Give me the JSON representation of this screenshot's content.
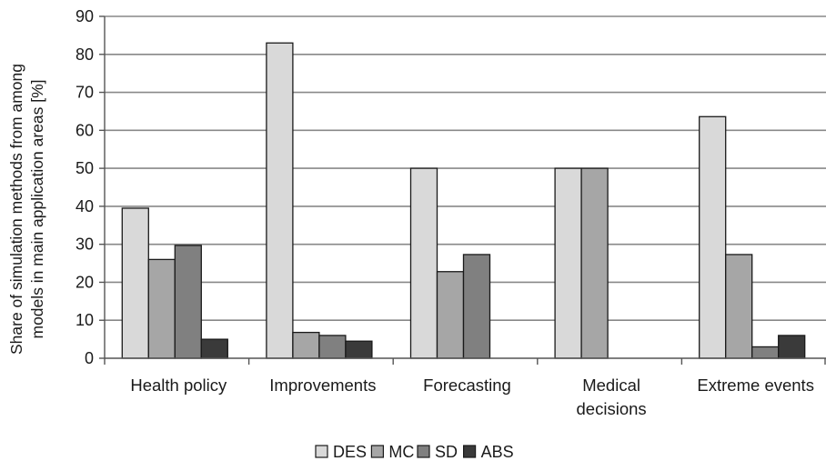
{
  "chart_data": {
    "type": "bar",
    "categories": [
      [
        "Health policy"
      ],
      [
        "Improvements"
      ],
      [
        "Forecasting"
      ],
      [
        "Medical",
        "decisions"
      ],
      [
        "Extreme events"
      ]
    ],
    "series": [
      {
        "name": "DES",
        "color": "#d9d9d9",
        "values": [
          39.5,
          83,
          50,
          50,
          63.6
        ]
      },
      {
        "name": "MC",
        "color": "#a6a6a6",
        "values": [
          26,
          6.8,
          22.8,
          50,
          27.3
        ]
      },
      {
        "name": "SD",
        "color": "#808080",
        "values": [
          29.7,
          6,
          27.3,
          0,
          3
        ]
      },
      {
        "name": "ABS",
        "color": "#3a3a3a",
        "values": [
          5,
          4.5,
          0,
          0,
          6
        ]
      }
    ],
    "ylabel_lines": [
      "Share of simulation methods from among",
      "models in main application areas [%]"
    ],
    "xlabel": "",
    "ylim": [
      0,
      90
    ],
    "yticks": [
      0,
      10,
      20,
      30,
      40,
      50,
      60,
      70,
      80,
      90
    ],
    "grid": true,
    "legend_position": "bottom"
  }
}
